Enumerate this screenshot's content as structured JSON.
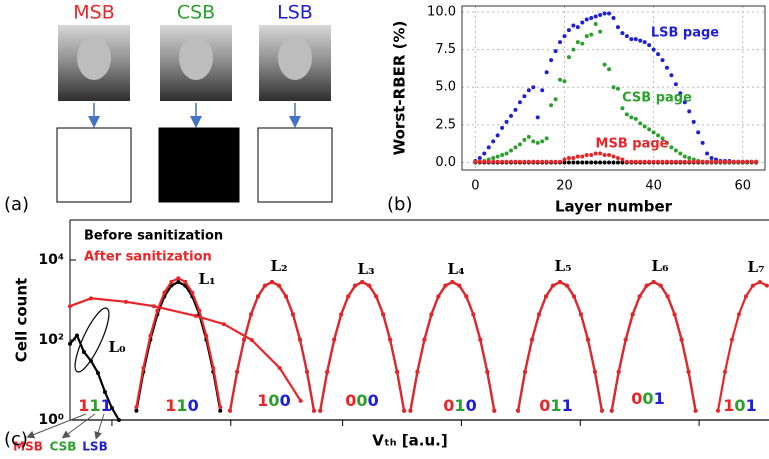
{
  "panel_a": {
    "label": "(a)",
    "pages": [
      {
        "name": "MSB",
        "color": "#e8262a",
        "cell": "#ffffff"
      },
      {
        "name": "CSB",
        "color": "#2ca02c",
        "cell": "#000000"
      },
      {
        "name": "LSB",
        "color": "#1f1fd6",
        "cell": "#ffffff"
      }
    ]
  },
  "chart_data": [
    {
      "type": "scatter",
      "panel_label": "(b)",
      "x_label": "Layer number",
      "y_label": "Worst-RBER (%)",
      "x": [
        0,
        1,
        2,
        3,
        4,
        5,
        6,
        7,
        8,
        9,
        10,
        11,
        12,
        13,
        14,
        15,
        16,
        17,
        18,
        19,
        20,
        21,
        22,
        23,
        24,
        25,
        26,
        27,
        28,
        29,
        30,
        31,
        32,
        33,
        34,
        35,
        36,
        37,
        38,
        39,
        40,
        41,
        42,
        43,
        44,
        45,
        46,
        47,
        48,
        49,
        50,
        51,
        52,
        53,
        54,
        55,
        56,
        57,
        58,
        59,
        60,
        61,
        62,
        63
      ],
      "xlim": [
        -3,
        65
      ],
      "xticks": [
        0,
        20,
        40,
        60
      ],
      "ylim": [
        -0.5,
        10.4
      ],
      "yticks": [
        {
          "value": 0,
          "label": "0.0"
        },
        {
          "value": 2.5,
          "label": "2.5"
        },
        {
          "value": 5,
          "label": "5.0"
        },
        {
          "value": 7.5,
          "label": "7.5"
        },
        {
          "value": 10,
          "label": "10.0"
        }
      ],
      "grid": true,
      "series": [
        {
          "color": "#000000",
          "values": [
            0,
            0,
            0,
            0,
            0,
            0,
            0,
            0,
            0,
            0,
            0,
            0,
            0,
            0,
            0,
            0,
            0,
            0,
            0,
            0,
            0,
            0,
            0,
            0,
            0,
            0,
            0,
            0,
            0,
            0,
            0,
            0,
            0,
            0,
            0,
            0,
            0,
            0,
            0,
            0,
            0,
            0,
            0,
            0,
            0,
            0,
            0,
            0,
            0,
            0,
            0,
            0,
            0,
            0,
            0,
            0,
            0,
            0,
            0,
            0,
            0,
            0,
            0,
            0
          ]
        },
        {
          "name": "LSB page",
          "color": "#1f1fd6",
          "values": [
            0.1,
            0.3,
            0.6,
            1.0,
            1.4,
            1.8,
            2.3,
            2.7,
            3.1,
            3.5,
            4.0,
            4.4,
            4.8,
            5.0,
            3.0,
            4.8,
            6.0,
            6.8,
            7.4,
            8.0,
            8.4,
            8.8,
            9.1,
            9.0,
            9.3,
            9.5,
            9.6,
            9.7,
            9.8,
            9.9,
            9.9,
            9.6,
            9.0,
            8.6,
            8.4,
            8.2,
            8.2,
            8.1,
            8.0,
            7.8,
            7.5,
            7.2,
            6.8,
            6.3,
            5.8,
            5.2,
            4.6,
            4.0,
            3.4,
            2.7,
            2.0,
            1.3,
            0.6,
            0.3,
            0.2,
            0.1,
            0.1,
            0.1,
            0.05,
            0.05,
            0.05,
            0.05,
            0.05,
            0.05
          ]
        },
        {
          "name": "CSB page",
          "color": "#2ca02c",
          "values": [
            0.02,
            0.05,
            0.1,
            0.2,
            0.3,
            0.4,
            0.5,
            0.6,
            0.8,
            1.0,
            1.2,
            1.5,
            1.7,
            1.4,
            1.3,
            1.4,
            1.6,
            3.8,
            4.2,
            5.5,
            5.4,
            7.0,
            7.5,
            8.0,
            7.9,
            8.4,
            8.5,
            9.2,
            8.7,
            6.5,
            6.2,
            5.0,
            4.9,
            3.6,
            3.2,
            3.0,
            2.9,
            2.6,
            2.4,
            2.2,
            2.0,
            1.8,
            1.6,
            1.3,
            1.0,
            0.8,
            0.6,
            0.4,
            0.3,
            0.2,
            0.1,
            0.05,
            0.03,
            0.03,
            0.03,
            0.03,
            0.03,
            0.03,
            0.03,
            0.03,
            0.03,
            0.03,
            0.03,
            0.03
          ]
        },
        {
          "name": "MSB page",
          "color": "#e8262a",
          "values": [
            0.05,
            0.05,
            0.05,
            0.05,
            0.05,
            0.05,
            0.05,
            0.05,
            0.05,
            0.05,
            0.05,
            0.05,
            0.05,
            0.05,
            0.05,
            0.05,
            0.05,
            0.05,
            0.05,
            0.05,
            0.2,
            0.3,
            0.3,
            0.4,
            0.4,
            0.5,
            0.5,
            0.6,
            0.6,
            0.5,
            0.5,
            0.4,
            0.3,
            0.2,
            0.05,
            0.05,
            0.05,
            0.05,
            0.05,
            0.05,
            0.05,
            0.05,
            0.05,
            0.05,
            0.05,
            0.05,
            0.05,
            0.05,
            0.05,
            0.05,
            0.05,
            0.05,
            0.05,
            0.05,
            0.05,
            0.05,
            0.05,
            0.05,
            0.05,
            0.05,
            0.05,
            0.05,
            0.05,
            0.05
          ]
        }
      ]
    },
    {
      "type": "line",
      "panel_label": "(c)",
      "x_label": "Vₜₕ [a.u.]",
      "y_label": "Cell count",
      "log_y": true,
      "xlim": [
        0,
        100
      ],
      "xticks": [
        6,
        23,
        39,
        56,
        73,
        90
      ],
      "ylim": [
        1,
        100000
      ],
      "yticks": [
        {
          "value": 1,
          "label": "10⁰"
        },
        {
          "value": 100,
          "label": "10²"
        },
        {
          "value": 10000,
          "label": "10⁴"
        }
      ],
      "levels": [
        "L₀",
        "L₁",
        "L₂",
        "L₃",
        "L₄",
        "L₅",
        "L₆",
        "L₇"
      ],
      "bit_names": [
        "MSB",
        "CSB",
        "LSB"
      ],
      "bit_colors": [
        "#e8262a",
        "#2ca02c",
        "#1f1fd6"
      ],
      "states": [
        [
          "1",
          "1",
          "1"
        ],
        [
          "1",
          "1",
          "0"
        ],
        [
          "1",
          "0",
          "0"
        ],
        [
          "0",
          "0",
          "0"
        ],
        [
          "0",
          "1",
          "0"
        ],
        [
          "0",
          "1",
          "1"
        ],
        [
          "0",
          "0",
          "1"
        ],
        [
          "1",
          "0",
          "1"
        ]
      ],
      "series": [
        {
          "name": "Before sanitization",
          "color": "#000000",
          "x": [
            0,
            1,
            2,
            3,
            4,
            5,
            6,
            7,
            null,
            9.5,
            10.5,
            11.5,
            12.5,
            13.5,
            14.5,
            15.5,
            16.5,
            17.5,
            18.5,
            19.5,
            20.5,
            21.5,
            null,
            22.9,
            23.9,
            24.9,
            25.9,
            26.9,
            27.9,
            28.9,
            29.9,
            30.9,
            31.9,
            32.9,
            33.9,
            34.9,
            null,
            35.8,
            36.8,
            37.8,
            38.8,
            39.8,
            40.8,
            41.8,
            42.8,
            43.8,
            44.8,
            45.8,
            46.8,
            47.8,
            null,
            48.7,
            49.7,
            50.7,
            51.7,
            52.7,
            53.7,
            54.7,
            55.7,
            56.7,
            57.7,
            58.7,
            59.7,
            60.7,
            null,
            64.1,
            65.1,
            66.1,
            67.1,
            68.1,
            69.1,
            70.1,
            71.1,
            72.1,
            73.1,
            74.1,
            75.1,
            76.1,
            null,
            77.5,
            78.5,
            79.5,
            80.5,
            81.5,
            82.5,
            83.5,
            84.5,
            85.5,
            86.5,
            87.5,
            88.5,
            89.5
          ],
          "values": [
            80,
            130,
            50,
            30,
            15,
            5,
            2,
            1,
            null,
            1.7,
            16,
            102,
            437,
            1230,
            2291,
            2818,
            2291,
            1230,
            437,
            102,
            16,
            1.7,
            null,
            1.7,
            16,
            102,
            437,
            1230,
            2291,
            2818,
            2291,
            1230,
            437,
            102,
            16,
            1.7,
            null,
            1.7,
            16,
            102,
            437,
            1230,
            2291,
            2818,
            2291,
            1230,
            437,
            102,
            16,
            1.7,
            null,
            1.7,
            16,
            102,
            437,
            1230,
            2291,
            2818,
            2291,
            1230,
            437,
            102,
            16,
            1.7,
            null,
            1.7,
            16,
            102,
            437,
            1230,
            2291,
            2818,
            2291,
            1230,
            437,
            102,
            16,
            1.7,
            null,
            1.7,
            16,
            102,
            437,
            1230,
            2291,
            2818,
            2291,
            1230,
            437,
            102,
            16,
            1.7
          ]
        },
        {
          "name": "After sanitization",
          "color": "#e8262a",
          "x": [
            0,
            3,
            8,
            12,
            18,
            22,
            26,
            30,
            33,
            null,
            9.5,
            10.5,
            11.5,
            12.5,
            13.5,
            14.5,
            15.5,
            16.5,
            17.5,
            18.5,
            19.5,
            20.5,
            21.5,
            null,
            22.9,
            23.9,
            24.9,
            25.9,
            26.9,
            27.9,
            28.9,
            29.9,
            30.9,
            31.9,
            32.9,
            33.9,
            34.9,
            null,
            35.8,
            36.8,
            37.8,
            38.8,
            39.8,
            40.8,
            41.8,
            42.8,
            43.8,
            44.8,
            45.8,
            46.8,
            47.8,
            null,
            48.7,
            49.7,
            50.7,
            51.7,
            52.7,
            53.7,
            54.7,
            55.7,
            56.7,
            57.7,
            58.7,
            59.7,
            60.7,
            null,
            64.1,
            65.1,
            66.1,
            67.1,
            68.1,
            69.1,
            70.1,
            71.1,
            72.1,
            73.1,
            74.1,
            75.1,
            76.1,
            null,
            77.5,
            78.5,
            79.5,
            80.5,
            81.5,
            82.5,
            83.5,
            84.5,
            85.5,
            86.5,
            87.5,
            88.5,
            89.5,
            null,
            92.7,
            93.7,
            94.7,
            95.7,
            96.7,
            97.7,
            98.7,
            99.7
          ],
          "values": [
            700,
            1100,
            900,
            700,
            400,
            250,
            100,
            20,
            3,
            null,
            2.1,
            20,
            127,
            543,
            1528,
            2846,
            3500,
            2846,
            1528,
            543,
            127,
            20,
            2.1,
            null,
            1.7,
            16,
            102,
            437,
            1230,
            2291,
            2818,
            2291,
            1230,
            437,
            102,
            16,
            1.7,
            null,
            1.7,
            16,
            102,
            437,
            1230,
            2291,
            2818,
            2291,
            1230,
            437,
            102,
            16,
            1.7,
            null,
            1.7,
            16,
            102,
            437,
            1230,
            2291,
            2818,
            2291,
            1230,
            437,
            102,
            16,
            1.7,
            null,
            1.7,
            16,
            102,
            437,
            1230,
            2291,
            2818,
            2291,
            1230,
            437,
            102,
            16,
            1.7,
            null,
            1.7,
            16,
            102,
            437,
            1230,
            2291,
            2818,
            2291,
            1230,
            437,
            102,
            16,
            1.7,
            null,
            1.7,
            16,
            102,
            437,
            1230,
            2291,
            2818,
            2291
          ]
        }
      ]
    }
  ]
}
